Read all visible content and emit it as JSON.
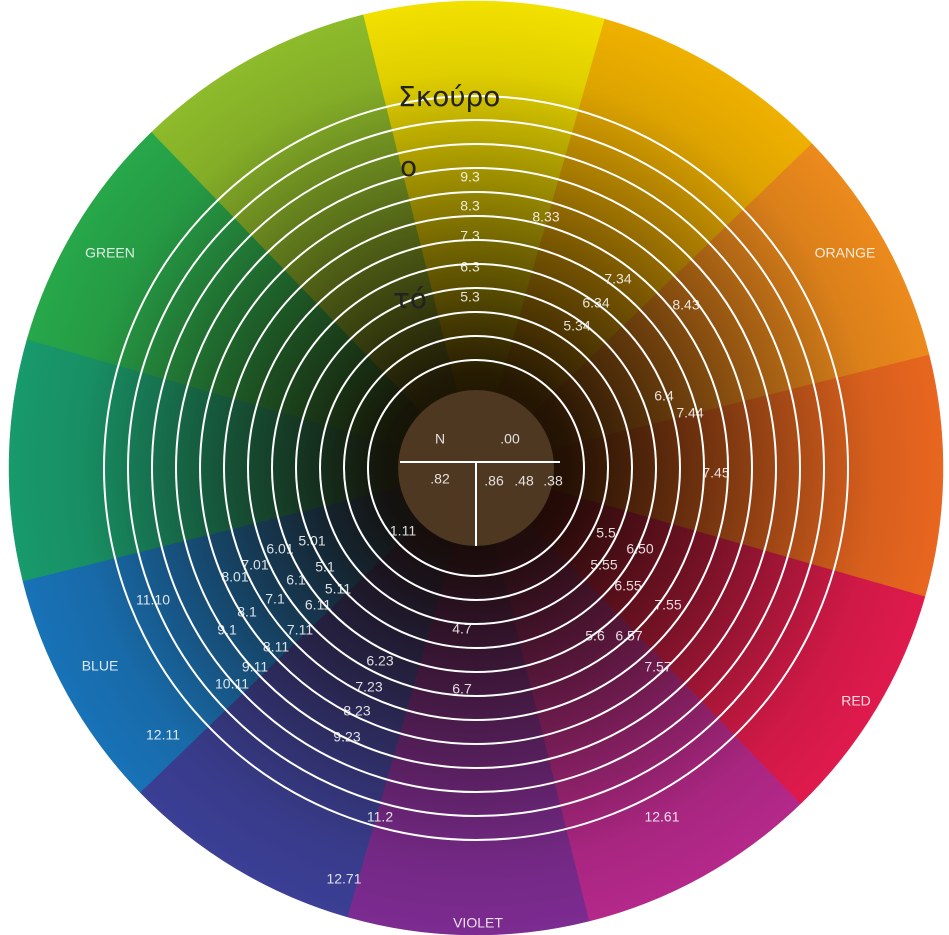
{
  "sector_colors": [
    "#f2e000",
    "#efb100",
    "#ec8a1c",
    "#e8661f",
    "#df1a4c",
    "#b4288a",
    "#7c2b90",
    "#3b3f95",
    "#1872b6",
    "#189a6c",
    "#27a74a",
    "#8dbb2b"
  ],
  "overlay_text": [
    "Σκούρο",
    "ο",
    "τό"
  ],
  "labels": [
    "N",
    ".00",
    ".82",
    ".86",
    ".48",
    ".38",
    "GREEN",
    "ORANGE",
    "BLUE",
    "RED",
    "VIOLET",
    "9.3",
    "8.3",
    "7.3",
    "6.3",
    "5.3",
    "8.33",
    "7.34",
    "6.34",
    "5.34",
    "8.43",
    "6.4",
    "7.44",
    "7.45",
    "5.5",
    "6.50",
    "5.55",
    "6.55",
    "7.55",
    "5.6",
    "6.57",
    "7.57",
    "12.61",
    "4.7",
    "6.7",
    "11.2",
    "12.71",
    "6.23",
    "7.23",
    "8.23",
    "9.23",
    "1.11",
    "5.01",
    "6.01",
    "5.1",
    "7.01",
    "6.1",
    "5.11",
    "8.01",
    "7.1",
    "6.11",
    "8.1",
    "7.11",
    "9.1",
    "8.11",
    "9.11",
    "10.11",
    "11.10",
    "12.11"
  ]
}
